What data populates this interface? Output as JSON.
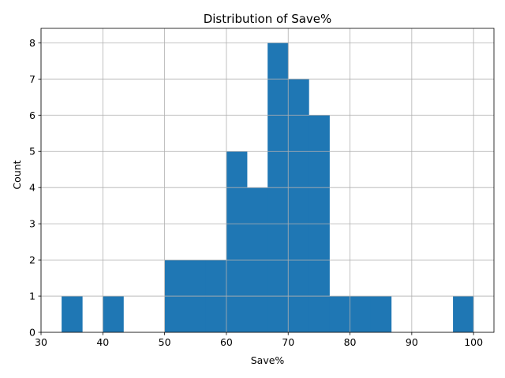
{
  "chart_data": {
    "type": "bar",
    "title": "Distribution of Save%",
    "xlabel": "Save%",
    "ylabel": "Count",
    "xlim": [
      30,
      103.3
    ],
    "ylim": [
      0,
      8.4
    ],
    "xticks": [
      30,
      40,
      50,
      60,
      70,
      80,
      90,
      100
    ],
    "yticks": [
      0,
      1,
      2,
      3,
      4,
      5,
      6,
      7,
      8
    ],
    "grid": true,
    "bar_color": "#1f77b4",
    "bins": [
      {
        "start": 33.33,
        "end": 36.67,
        "count": 1
      },
      {
        "start": 36.67,
        "end": 40.0,
        "count": 0
      },
      {
        "start": 40.0,
        "end": 43.33,
        "count": 1
      },
      {
        "start": 43.33,
        "end": 46.67,
        "count": 0
      },
      {
        "start": 46.67,
        "end": 50.0,
        "count": 0
      },
      {
        "start": 50.0,
        "end": 53.33,
        "count": 2
      },
      {
        "start": 53.33,
        "end": 56.67,
        "count": 2
      },
      {
        "start": 56.67,
        "end": 60.0,
        "count": 2
      },
      {
        "start": 60.0,
        "end": 63.33,
        "count": 5
      },
      {
        "start": 63.33,
        "end": 66.67,
        "count": 4
      },
      {
        "start": 66.67,
        "end": 70.0,
        "count": 8
      },
      {
        "start": 70.0,
        "end": 73.33,
        "count": 7
      },
      {
        "start": 73.33,
        "end": 76.67,
        "count": 6
      },
      {
        "start": 76.67,
        "end": 80.0,
        "count": 1
      },
      {
        "start": 80.0,
        "end": 83.33,
        "count": 1
      },
      {
        "start": 83.33,
        "end": 86.67,
        "count": 1
      },
      {
        "start": 86.67,
        "end": 90.0,
        "count": 0
      },
      {
        "start": 90.0,
        "end": 93.33,
        "count": 0
      },
      {
        "start": 93.33,
        "end": 96.67,
        "count": 0
      },
      {
        "start": 96.67,
        "end": 100.0,
        "count": 1
      }
    ]
  }
}
